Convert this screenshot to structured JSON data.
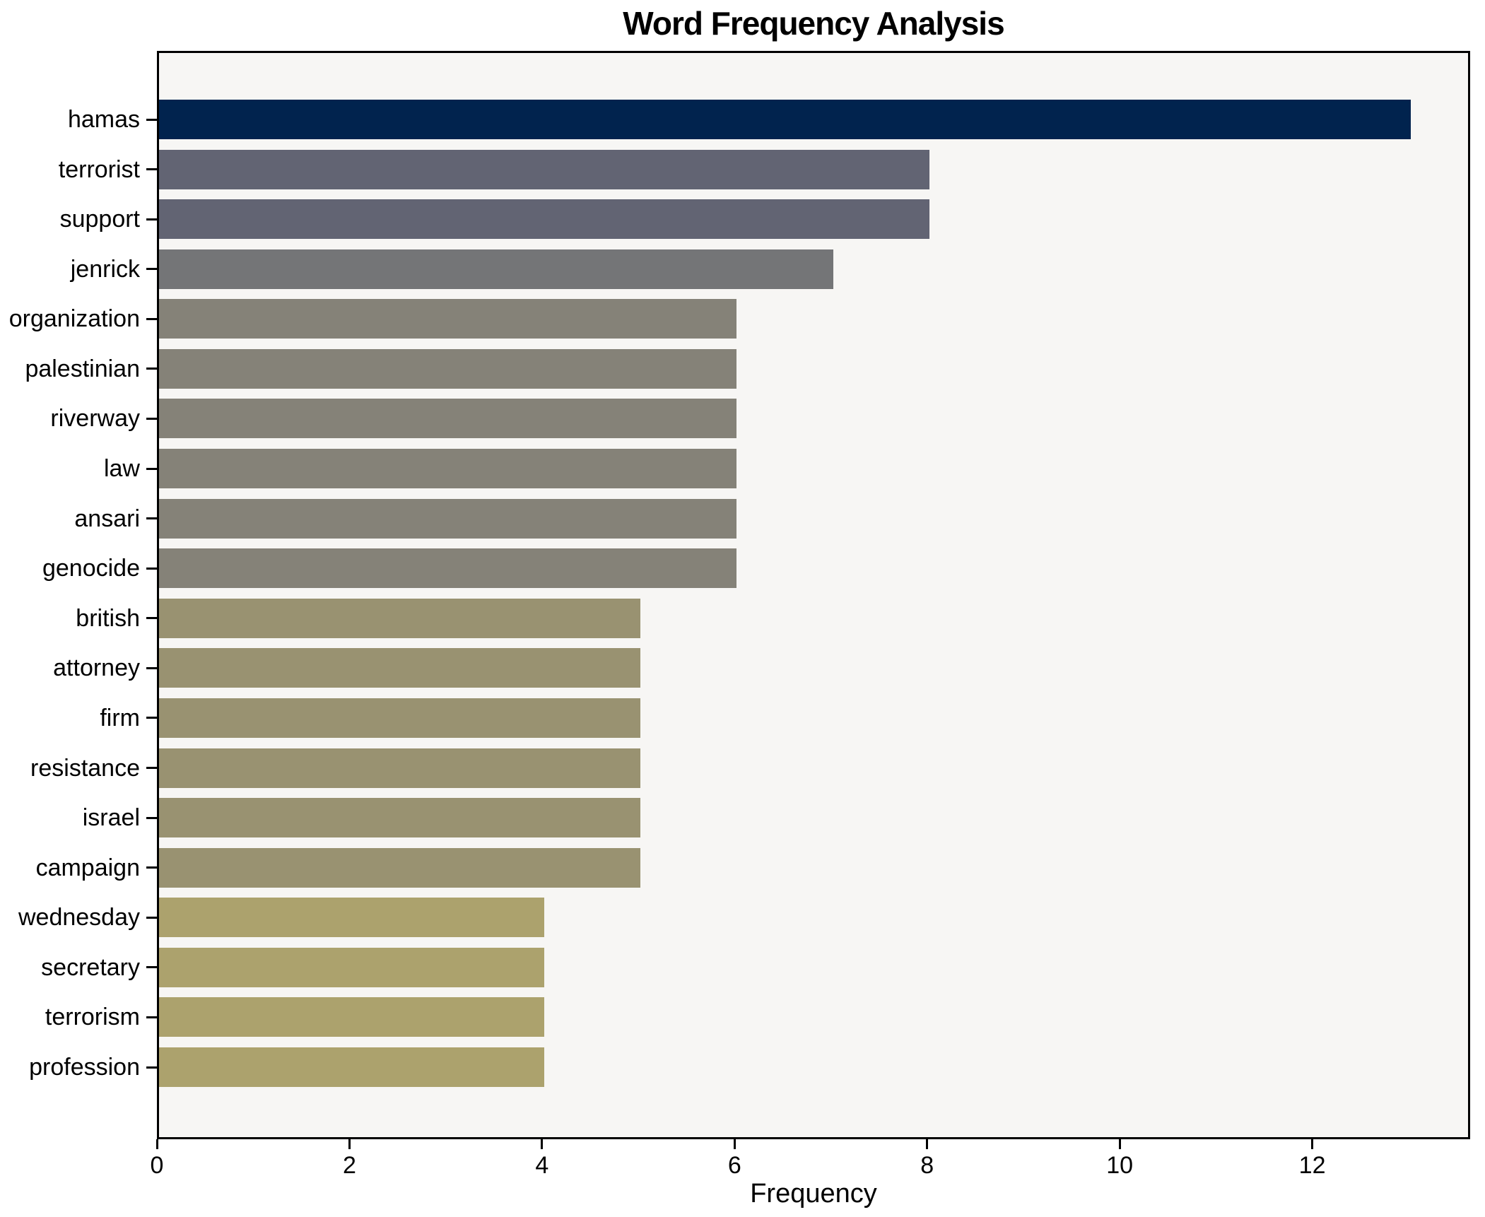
{
  "title": "Word Frequency Analysis",
  "chart_data": {
    "type": "bar",
    "orientation": "horizontal",
    "title": "Word Frequency Analysis",
    "xlabel": "Frequency",
    "ylabel": "",
    "categories": [
      "hamas",
      "terrorist",
      "support",
      "jenrick",
      "organization",
      "palestinian",
      "riverway",
      "law",
      "ansari",
      "genocide",
      "british",
      "attorney",
      "firm",
      "resistance",
      "israel",
      "campaign",
      "wednesday",
      "secretary",
      "terrorism",
      "profession"
    ],
    "values": [
      13,
      8,
      8,
      7,
      6,
      6,
      6,
      6,
      6,
      6,
      5,
      5,
      5,
      5,
      5,
      5,
      4,
      4,
      4,
      4
    ],
    "bar_colors": [
      "#01234e",
      "#626473",
      "#626473",
      "#747577",
      "#858278",
      "#858278",
      "#858278",
      "#858278",
      "#858278",
      "#858278",
      "#999271",
      "#999271",
      "#999271",
      "#999271",
      "#999271",
      "#999271",
      "#aca26d",
      "#aca26d",
      "#aca26d",
      "#aca26d"
    ],
    "x_ticks": [
      0,
      2,
      4,
      6,
      8,
      10,
      12
    ],
    "xlim": [
      0,
      13.64
    ],
    "grid": false,
    "legend": null,
    "plot_background": "#f7f6f4",
    "figure_background": "#ffffff",
    "spine_color": "#000000",
    "text_color": "#000000"
  }
}
